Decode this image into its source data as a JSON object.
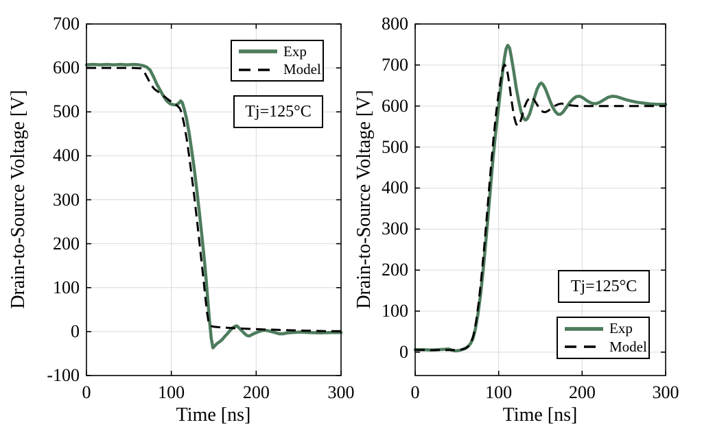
{
  "figure": {
    "background": "#ffffff",
    "grid_color": "#d9d9d9",
    "axis_color": "#000000"
  },
  "chart_data": [
    {
      "type": "line",
      "title": "",
      "xlabel": "Time [ns]",
      "ylabel": "Drain-to-Source Voltage [V]",
      "xlim": [
        0,
        300
      ],
      "ylim": [
        -100,
        700
      ],
      "xticks": [
        0,
        100,
        200,
        300
      ],
      "yticks": [
        -100,
        0,
        100,
        200,
        300,
        400,
        500,
        600,
        700
      ],
      "grid": true,
      "legend_position": "top-right",
      "annotation": {
        "text": "Tj=125°C"
      },
      "series": [
        {
          "name": "Exp",
          "color": "#4d7c5d",
          "style": "solid",
          "width": 4.5,
          "points": [
            [
              0,
              607
            ],
            [
              8,
              608
            ],
            [
              16,
              607
            ],
            [
              24,
              608
            ],
            [
              32,
              607
            ],
            [
              40,
              608
            ],
            [
              48,
              607
            ],
            [
              56,
              608
            ],
            [
              62,
              607
            ],
            [
              67,
              605
            ],
            [
              71,
              602
            ],
            [
              75,
              595
            ],
            [
              79,
              580
            ],
            [
              83,
              563
            ],
            [
              87,
              549
            ],
            [
              91,
              535
            ],
            [
              95,
              524
            ],
            [
              99,
              518
            ],
            [
              103,
              516
            ],
            [
              106,
              516
            ],
            [
              109,
              520
            ],
            [
              111,
              525
            ],
            [
              113,
              521
            ],
            [
              115,
              508
            ],
            [
              118,
              484
            ],
            [
              121,
              452
            ],
            [
              124,
              413
            ],
            [
              127,
              370
            ],
            [
              130,
              322
            ],
            [
              133,
              272
            ],
            [
              136,
              218
            ],
            [
              139,
              162
            ],
            [
              141,
              118
            ],
            [
              143,
              72
            ],
            [
              145,
              25
            ],
            [
              147,
              -15
            ],
            [
              149,
              -37
            ],
            [
              151,
              -33
            ],
            [
              154,
              -27
            ],
            [
              157,
              -23
            ],
            [
              160,
              -18
            ],
            [
              163,
              -11
            ],
            [
              166,
              -5
            ],
            [
              169,
              2
            ],
            [
              172,
              8
            ],
            [
              175,
              12
            ],
            [
              177,
              13
            ],
            [
              180,
              8
            ],
            [
              183,
              2
            ],
            [
              186,
              -4
            ],
            [
              189,
              -9
            ],
            [
              192,
              -10
            ],
            [
              195,
              -7
            ],
            [
              198,
              -4
            ],
            [
              202,
              -1
            ],
            [
              206,
              2
            ],
            [
              210,
              3
            ],
            [
              214,
              2
            ],
            [
              218,
              0
            ],
            [
              222,
              -2
            ],
            [
              227,
              -5
            ],
            [
              232,
              -5
            ],
            [
              237,
              -3
            ],
            [
              243,
              -2
            ],
            [
              252,
              -1
            ],
            [
              262,
              -2
            ],
            [
              275,
              -3
            ],
            [
              288,
              -2
            ],
            [
              300,
              -2
            ]
          ]
        },
        {
          "name": "Model",
          "color": "#000000",
          "style": "dashed",
          "width": 3,
          "points": [
            [
              0,
              600
            ],
            [
              30,
              600
            ],
            [
              55,
              600
            ],
            [
              64,
              599
            ],
            [
              68,
              591
            ],
            [
              72,
              577
            ],
            [
              76,
              562
            ],
            [
              80,
              552
            ],
            [
              85,
              545
            ],
            [
              90,
              538
            ],
            [
              95,
              530
            ],
            [
              100,
              523
            ],
            [
              104,
              518
            ],
            [
              107,
              514
            ],
            [
              110,
              508
            ],
            [
              112,
              499
            ],
            [
              115,
              473
            ],
            [
              118,
              440
            ],
            [
              121,
              400
            ],
            [
              124,
              355
            ],
            [
              127,
              308
            ],
            [
              130,
              257
            ],
            [
              133,
              205
            ],
            [
              136,
              152
            ],
            [
              138,
              116
            ],
            [
              140,
              80
            ],
            [
              142,
              45
            ],
            [
              144,
              20
            ],
            [
              146,
              13
            ],
            [
              150,
              11
            ],
            [
              156,
              10
            ],
            [
              164,
              9
            ],
            [
              172,
              8
            ],
            [
              182,
              7
            ],
            [
              194,
              6
            ],
            [
              208,
              5
            ],
            [
              224,
              4
            ],
            [
              242,
              3
            ],
            [
              262,
              2
            ],
            [
              282,
              1
            ],
            [
              300,
              1
            ]
          ]
        }
      ]
    },
    {
      "type": "line",
      "title": "",
      "xlabel": "Time [ns]",
      "ylabel": "Drain-to-Source Voltage [V]",
      "xlim": [
        0,
        300
      ],
      "ylim": [
        -57,
        800
      ],
      "xticks": [
        0,
        100,
        200,
        300
      ],
      "yticks": [
        0,
        100,
        200,
        300,
        400,
        500,
        600,
        700,
        800
      ],
      "grid": true,
      "legend_position": "bottom-right",
      "annotation": {
        "text": "Tj=125°C"
      },
      "series": [
        {
          "name": "Exp",
          "color": "#4d7c5d",
          "style": "solid",
          "width": 4.5,
          "points": [
            [
              0,
              6
            ],
            [
              10,
              6
            ],
            [
              20,
              5
            ],
            [
              28,
              6
            ],
            [
              35,
              7
            ],
            [
              40,
              8
            ],
            [
              44,
              5
            ],
            [
              48,
              3
            ],
            [
              52,
              4
            ],
            [
              56,
              6
            ],
            [
              60,
              9
            ],
            [
              63,
              13
            ],
            [
              66,
              20
            ],
            [
              69,
              32
            ],
            [
              72,
              55
            ],
            [
              75,
              90
            ],
            [
              78,
              135
            ],
            [
              81,
              190
            ],
            [
              84,
              255
            ],
            [
              87,
              325
            ],
            [
              90,
              395
            ],
            [
              93,
              465
            ],
            [
              96,
              528
            ],
            [
              99,
              582
            ],
            [
              102,
              635
            ],
            [
              105,
              688
            ],
            [
              107,
              718
            ],
            [
              109,
              740
            ],
            [
              111,
              748
            ],
            [
              113,
              742
            ],
            [
              115,
              722
            ],
            [
              118,
              685
            ],
            [
              121,
              645
            ],
            [
              124,
              612
            ],
            [
              127,
              585
            ],
            [
              130,
              570
            ],
            [
              132,
              566
            ],
            [
              134,
              568
            ],
            [
              137,
              580
            ],
            [
              140,
              600
            ],
            [
              143,
              622
            ],
            [
              146,
              641
            ],
            [
              149,
              653
            ],
            [
              151,
              656
            ],
            [
              153,
              653
            ],
            [
              156,
              642
            ],
            [
              159,
              626
            ],
            [
              162,
              610
            ],
            [
              165,
              596
            ],
            [
              168,
              586
            ],
            [
              171,
              580
            ],
            [
              174,
              580
            ],
            [
              177,
              585
            ],
            [
              181,
              596
            ],
            [
              185,
              608
            ],
            [
              189,
              617
            ],
            [
              193,
              623
            ],
            [
              197,
              624
            ],
            [
              201,
              620
            ],
            [
              205,
              614
            ],
            [
              209,
              609
            ],
            [
              213,
              606
            ],
            [
              217,
              606
            ],
            [
              221,
              609
            ],
            [
              226,
              615
            ],
            [
              231,
              621
            ],
            [
              236,
              624
            ],
            [
              241,
              623
            ],
            [
              247,
              619
            ],
            [
              253,
              615
            ],
            [
              259,
              612
            ],
            [
              266,
              609
            ],
            [
              274,
              607
            ],
            [
              282,
              605
            ],
            [
              291,
              604
            ],
            [
              300,
              604
            ]
          ]
        },
        {
          "name": "Model",
          "color": "#000000",
          "style": "dashed",
          "width": 3,
          "points": [
            [
              0,
              5
            ],
            [
              15,
              5
            ],
            [
              30,
              5
            ],
            [
              45,
              5
            ],
            [
              55,
              6
            ],
            [
              60,
              9
            ],
            [
              64,
              15
            ],
            [
              67,
              24
            ],
            [
              70,
              42
            ],
            [
              73,
              75
            ],
            [
              76,
              120
            ],
            [
              79,
              175
            ],
            [
              82,
              240
            ],
            [
              85,
              310
            ],
            [
              88,
              385
            ],
            [
              91,
              458
            ],
            [
              94,
              525
            ],
            [
              97,
              583
            ],
            [
              100,
              632
            ],
            [
              103,
              670
            ],
            [
              105,
              692
            ],
            [
              107,
              701
            ],
            [
              109,
              696
            ],
            [
              111,
              678
            ],
            [
              113,
              650
            ],
            [
              115,
              620
            ],
            [
              117,
              592
            ],
            [
              119,
              570
            ],
            [
              121,
              556
            ],
            [
              123,
              552
            ],
            [
              125,
              556
            ],
            [
              127,
              568
            ],
            [
              129,
              583
            ],
            [
              131,
              598
            ],
            [
              134,
              612
            ],
            [
              137,
              620
            ],
            [
              139,
              622
            ],
            [
              141,
              619
            ],
            [
              144,
              610
            ],
            [
              147,
              600
            ],
            [
              150,
              591
            ],
            [
              153,
              586
            ],
            [
              156,
              585
            ],
            [
              159,
              588
            ],
            [
              163,
              594
            ],
            [
              167,
              600
            ],
            [
              171,
              604
            ],
            [
              175,
              606
            ],
            [
              179,
              605
            ],
            [
              184,
              602
            ],
            [
              189,
              601
            ],
            [
              195,
              600
            ],
            [
              205,
              600
            ],
            [
              220,
              600
            ],
            [
              240,
              600
            ],
            [
              270,
              600
            ],
            [
              300,
              600
            ]
          ]
        }
      ]
    }
  ]
}
